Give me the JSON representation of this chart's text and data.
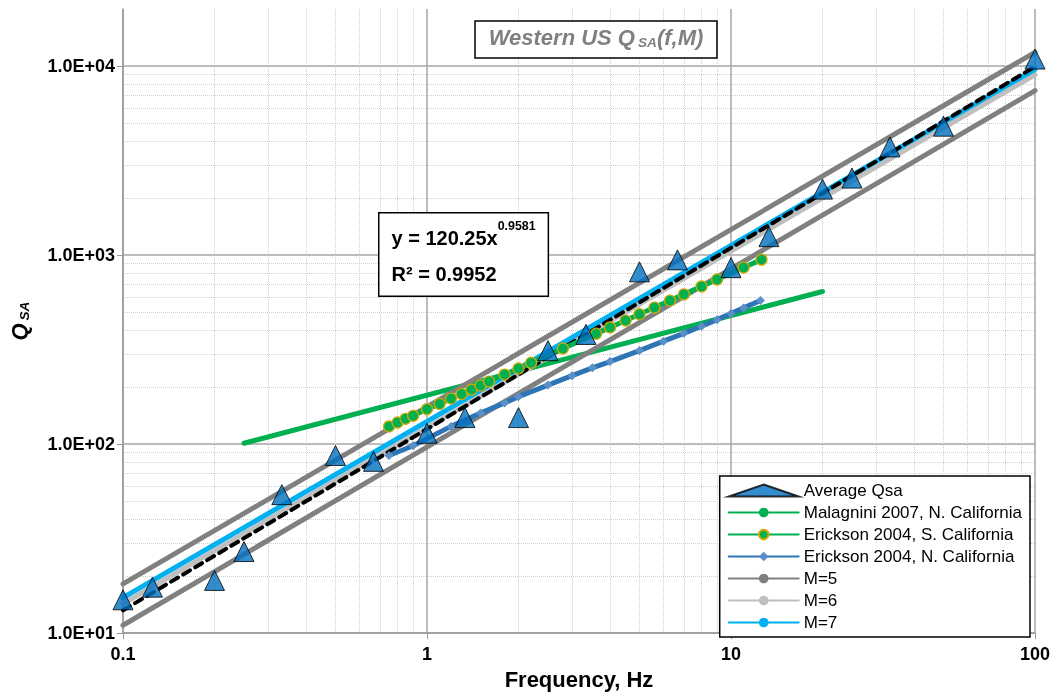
{
  "chart_data": {
    "type": "line",
    "title": "Western US Q$_{SA}$(f,M)",
    "xlabel": "Frequency, Hz",
    "ylabel": "Q$_{SA}$",
    "annotations": [
      "y = 120.25x$^{0.9581}$",
      "R² = 0.9952"
    ],
    "log": "xy",
    "grid": true,
    "legend": "bottom right",
    "xlim": [
      0.1,
      100
    ],
    "xticks": [
      0.1,
      1,
      10,
      100
    ],
    "ylim": [
      10,
      20000
    ],
    "yticks": [
      {
        "value": 10,
        "label": "1.0E+01"
      },
      {
        "value": 100,
        "label": "1.0E+02"
      },
      {
        "value": 1000,
        "label": "1.0E+03"
      },
      {
        "value": 10000,
        "label": "1.0E+04"
      }
    ],
    "series": [
      {
        "name": "Average Qsa",
        "type": "scatter",
        "color": "#0070c0",
        "marker": "triangle",
        "x": [
          0.1,
          0.125,
          0.2,
          0.25,
          0.333,
          0.5,
          0.667,
          1,
          1.333,
          2,
          2.5,
          3.333,
          5,
          6.667,
          10,
          13.33,
          20,
          25,
          33.33,
          50,
          100
        ],
        "values": [
          15,
          17.5,
          19,
          27,
          54,
          87,
          81,
          114,
          138,
          138,
          312,
          380,
          814,
          942,
          857,
          1250,
          2230,
          2550,
          3730,
          4800,
          10870
        ]
      },
      {
        "name": "Malagnini 2007, N. California",
        "color": "#00b050",
        "marker": "none",
        "x": [
          0.25,
          20
        ],
        "values": [
          101,
          641
        ]
      },
      {
        "name": "Erickson 2004, S. California",
        "color": "#00b050",
        "marker": "circle",
        "x": [
          0.75,
          0.8,
          0.85,
          0.9,
          1.0,
          1.1,
          1.2,
          1.3,
          1.4,
          1.5,
          1.6,
          1.8,
          2.0,
          2.2,
          2.8,
          3.6,
          4.0,
          4.5,
          5.0,
          5.6,
          6.3,
          7.0,
          8.0,
          9.0,
          11,
          12.6
        ],
        "values": [
          124,
          130,
          136,
          141,
          153,
          163,
          174,
          184,
          194,
          204,
          214,
          233,
          251,
          269,
          320,
          383,
          414,
          450,
          486,
          527,
          574,
          619,
          682,
          742,
          858,
          945
        ]
      },
      {
        "name": "Erickson 2004, N. California",
        "color": "#2e75b6",
        "marker": "diamond",
        "x": [
          0.75,
          0.9,
          1.2,
          1.5,
          1.8,
          2.0,
          2.5,
          3,
          3.5,
          4,
          5,
          6,
          7,
          8,
          9,
          10,
          11,
          12.5
        ],
        "values": [
          87,
          98,
          124,
          146,
          165,
          178,
          205,
          230,
          253,
          273,
          312,
          350,
          385,
          420,
          455,
          490,
          525,
          575
        ]
      },
      {
        "name": "M=5",
        "color": "#808080",
        "marker": "none",
        "x": [
          0.1,
          100
        ],
        "values": [
          11,
          7400
        ]
      },
      {
        "name": "M=6",
        "color": "#bfbfbf",
        "marker": "none",
        "x": [
          0.1,
          100
        ],
        "values": [
          14.3,
          8970
        ]
      },
      {
        "name": "M=7",
        "color": "#00b0f0",
        "marker": "none",
        "x": [
          0.1,
          100
        ],
        "values": [
          15.4,
          9600
        ]
      },
      {
        "color": "#808080",
        "marker": "none",
        "x": [
          0.1,
          100
        ],
        "values": [
          18.2,
          11800
        ]
      },
      {
        "color": "#000000",
        "marker": "none",
        "line_style": "dashed",
        "x": [
          0.1,
          100
        ],
        "values": [
          13.2,
          9915
        ]
      }
    ]
  }
}
